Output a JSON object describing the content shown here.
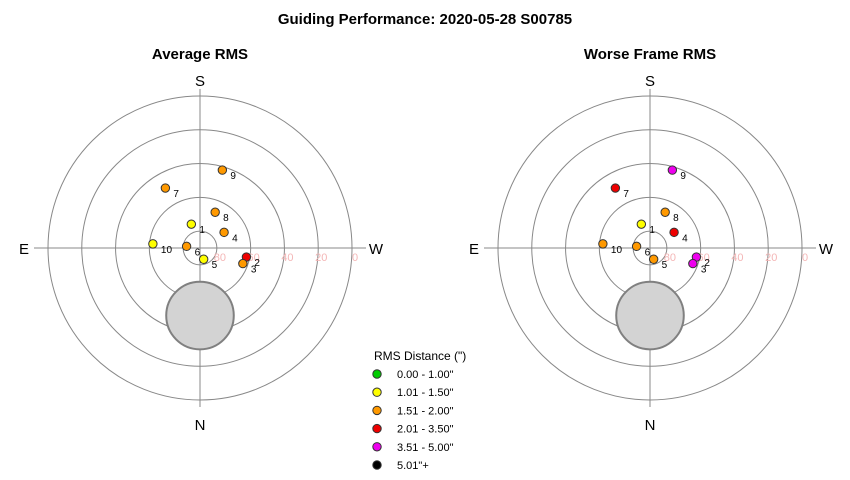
{
  "chart_data": {
    "type": "scatter",
    "projection": "polar-altaz",
    "title": "Guiding Performance: 2020-05-28 S00785",
    "compass": {
      "top": "S",
      "bottom": "N",
      "left": "E",
      "right": "W"
    },
    "altitude_ticks": [
      80,
      60,
      40,
      20,
      0
    ],
    "legend": {
      "title": "RMS Distance (\")",
      "placement": "bottom-center",
      "entries": [
        {
          "label": "0.00 - 1.00\"",
          "color": "#00cc00"
        },
        {
          "label": "1.01 - 1.50\"",
          "color": "#ffff00"
        },
        {
          "label": "1.51 - 2.00\"",
          "color": "#ff9900"
        },
        {
          "label": "2.01 - 3.50\"",
          "color": "#ee0000"
        },
        {
          "label": "3.51 - 5.00\"",
          "color": "#ee00ee"
        },
        {
          "label": "5.01\"+",
          "color": "#000000"
        }
      ]
    },
    "panels": [
      {
        "title": "Average RMS",
        "moon": {
          "azimuth_deg": 0,
          "altitude_deg": 50,
          "radius_deg": 12.5
        },
        "points": [
          {
            "label": "1",
            "azimuth_deg": 160,
            "altitude_deg": 75,
            "rms_class": 1
          },
          {
            "label": "2",
            "azimuth_deg": 281,
            "altitude_deg": 62,
            "rms_class": 3
          },
          {
            "label": "3",
            "azimuth_deg": 290,
            "altitude_deg": 63,
            "rms_class": 2
          },
          {
            "label": "4",
            "azimuth_deg": 237,
            "altitude_deg": 73,
            "rms_class": 2
          },
          {
            "label": "5",
            "azimuth_deg": 342,
            "altitude_deg": 83,
            "rms_class": 1
          },
          {
            "label": "6",
            "azimuth_deg": 97,
            "altitude_deg": 82,
            "rms_class": 2
          },
          {
            "label": "7",
            "azimuth_deg": 150,
            "altitude_deg": 49,
            "rms_class": 2
          },
          {
            "label": "8",
            "azimuth_deg": 203,
            "altitude_deg": 67,
            "rms_class": 2
          },
          {
            "label": "9",
            "azimuth_deg": 196,
            "altitude_deg": 42,
            "rms_class": 2
          },
          {
            "label": "10",
            "azimuth_deg": 95,
            "altitude_deg": 62,
            "rms_class": 1
          }
        ]
      },
      {
        "title": "Worse Frame RMS",
        "moon": {
          "azimuth_deg": 0,
          "altitude_deg": 50,
          "radius_deg": 12.5
        },
        "points": [
          {
            "label": "1",
            "azimuth_deg": 160,
            "altitude_deg": 75,
            "rms_class": 1
          },
          {
            "label": "2",
            "azimuth_deg": 281,
            "altitude_deg": 62,
            "rms_class": 4
          },
          {
            "label": "3",
            "azimuth_deg": 290,
            "altitude_deg": 63,
            "rms_class": 4
          },
          {
            "label": "4",
            "azimuth_deg": 237,
            "altitude_deg": 73,
            "rms_class": 3
          },
          {
            "label": "5",
            "azimuth_deg": 342,
            "altitude_deg": 83,
            "rms_class": 2
          },
          {
            "label": "6",
            "azimuth_deg": 97,
            "altitude_deg": 82,
            "rms_class": 2
          },
          {
            "label": "7",
            "azimuth_deg": 150,
            "altitude_deg": 49,
            "rms_class": 3
          },
          {
            "label": "8",
            "azimuth_deg": 203,
            "altitude_deg": 67,
            "rms_class": 2
          },
          {
            "label": "9",
            "azimuth_deg": 196,
            "altitude_deg": 42,
            "rms_class": 4
          },
          {
            "label": "10",
            "azimuth_deg": 95,
            "altitude_deg": 62,
            "rms_class": 2
          }
        ]
      }
    ]
  }
}
